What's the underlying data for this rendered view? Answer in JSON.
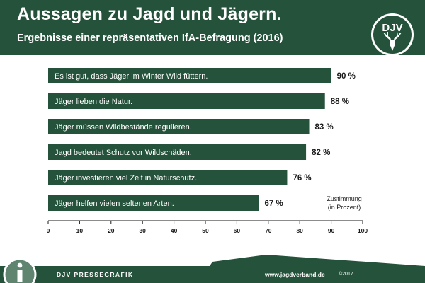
{
  "header": {
    "title": "Aussagen zu Jagd und Jägern.",
    "subtitle": "Ergebnisse einer repräsentativen IfA-Befragung (2016)",
    "logo_text": "DJV"
  },
  "chart_data": {
    "type": "bar",
    "orientation": "horizontal",
    "categories": [
      "Es ist gut, dass Jäger im Winter Wild füttern.",
      "Jäger lieben die Natur.",
      "Jäger müssen Wildbestände regulieren.",
      "Jagd bedeutet Schutz vor Wildschäden.",
      "Jäger investieren viel Zeit in Naturschutz.",
      "Jäger helfen vielen seltenen Arten."
    ],
    "values": [
      90,
      88,
      83,
      82,
      76,
      67
    ],
    "value_labels": [
      "90 %",
      "88 %",
      "83 %",
      "82 %",
      "76 %",
      "67 %"
    ],
    "xlim": [
      0,
      100
    ],
    "xticks": [
      0,
      10,
      20,
      30,
      40,
      50,
      60,
      70,
      80,
      90,
      100
    ],
    "annotation_line1": "Zustimmung",
    "annotation_line2": "(in Prozent)",
    "grid": false,
    "bar_color": "#24523a"
  },
  "footer": {
    "label": "DJV PRESSEGRAFIK",
    "url": "www.jagdverband.de",
    "copyright": "©2017"
  },
  "colors": {
    "primary": "#24523a",
    "background": "#ffffff"
  }
}
